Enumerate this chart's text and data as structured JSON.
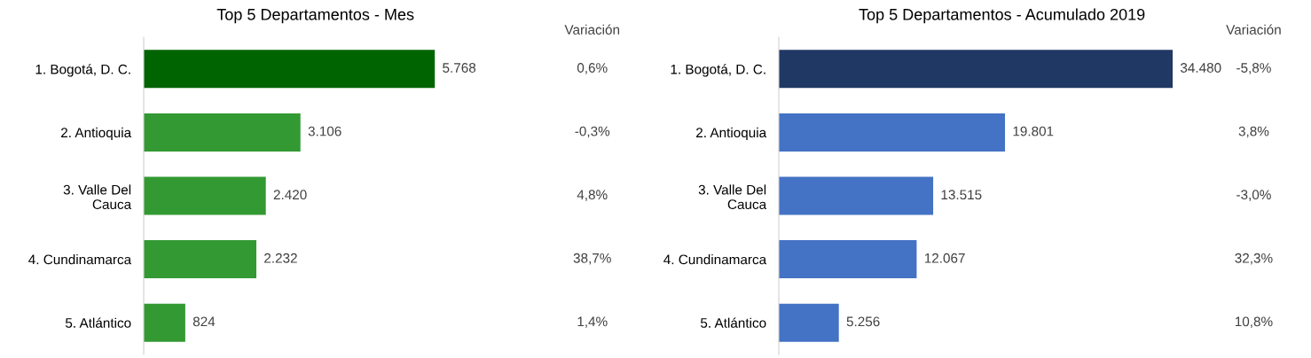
{
  "chart_data": [
    {
      "type": "bar",
      "orientation": "horizontal",
      "title": "Top 5 Departamentos - Mes",
      "categories": [
        "1. Bogotá, D. C.",
        "2. Antioquia",
        "3. Valle Del\nCauca",
        "4. Cundinamarca",
        "5. Atlántico"
      ],
      "values": [
        5768,
        3106,
        2420,
        2232,
        824
      ],
      "value_labels": [
        "5.768",
        "3.106",
        "2.420",
        "2.232",
        "824"
      ],
      "colors": [
        "#006400",
        "#339933",
        "#339933",
        "#339933",
        "#339933"
      ],
      "annotations": [
        "Variación",
        "0,6%",
        "-0,3%",
        "4,8%",
        "38,7%",
        "1,4%"
      ]
    },
    {
      "type": "bar",
      "orientation": "horizontal",
      "title": "Top 5 Departamentos - Acumulado 2019",
      "categories": [
        "1. Bogotá, D. C.",
        "2. Antioquia",
        "3. Valle Del\nCauca",
        "4. Cundinamarca",
        "5. Atlántico"
      ],
      "values": [
        34480,
        19801,
        13515,
        12067,
        5256
      ],
      "value_labels": [
        "34.480",
        "19.801",
        "13.515",
        "12.067",
        "5.256"
      ],
      "colors": [
        "#203864",
        "#4472c4",
        "#4472c4",
        "#4472c4",
        "#4472c4"
      ],
      "annotations": [
        "Variación",
        "-5,8%",
        "3,8%",
        "-3,0%",
        "32,3%",
        "10,8%"
      ]
    }
  ]
}
